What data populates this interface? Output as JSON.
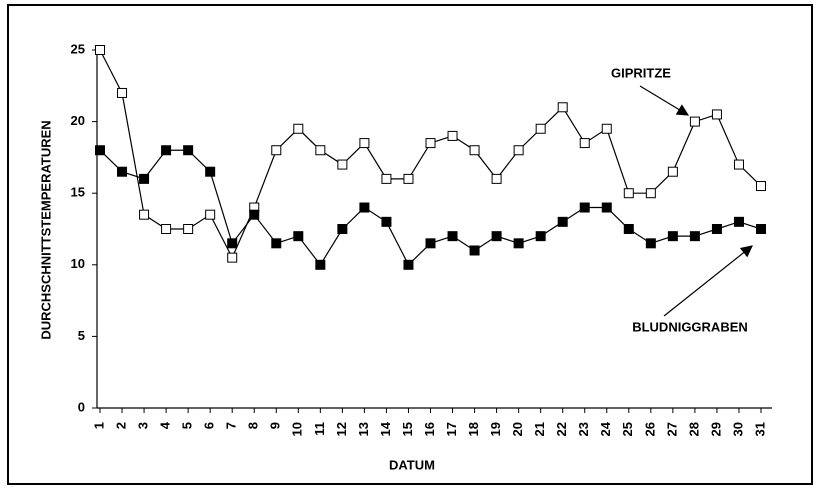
{
  "chart_data": {
    "type": "line",
    "x_label": "DATUM",
    "y_label": "DURCHSCHNITTSTEMPERATUREN",
    "categories": [
      "1",
      "2",
      "3",
      "4",
      "5",
      "6",
      "7",
      "8",
      "9",
      "10",
      "11",
      "12",
      "13",
      "14",
      "15",
      "16",
      "17",
      "18",
      "19",
      "20",
      "21",
      "22",
      "23",
      "24",
      "25",
      "26",
      "27",
      "28",
      "29",
      "30",
      "31"
    ],
    "series": [
      {
        "name": "GIPRITZE",
        "color": "#ffffff",
        "values": [
          25,
          22,
          13.5,
          12.5,
          12.5,
          13.5,
          10.5,
          14,
          18,
          19.5,
          18,
          17,
          18.5,
          16,
          16,
          18.5,
          19,
          18,
          16,
          18,
          19.5,
          21,
          18.5,
          19.5,
          15,
          15,
          16.5,
          20,
          20.5,
          17,
          15.5
        ]
      },
      {
        "name": "BLUDNIGGRABEN",
        "color": "#000000",
        "values": [
          18,
          16.5,
          16,
          18,
          18,
          16.5,
          11.5,
          13.5,
          11.5,
          12,
          10,
          12.5,
          14,
          13,
          10,
          11.5,
          12,
          11,
          12,
          11.5,
          12,
          13,
          14,
          14,
          12.5,
          11.5,
          12,
          12,
          12.5,
          13,
          12.5
        ]
      }
    ],
    "ylim": [
      0,
      25
    ],
    "yticks": [
      0,
      5,
      10,
      15,
      20,
      25
    ]
  }
}
